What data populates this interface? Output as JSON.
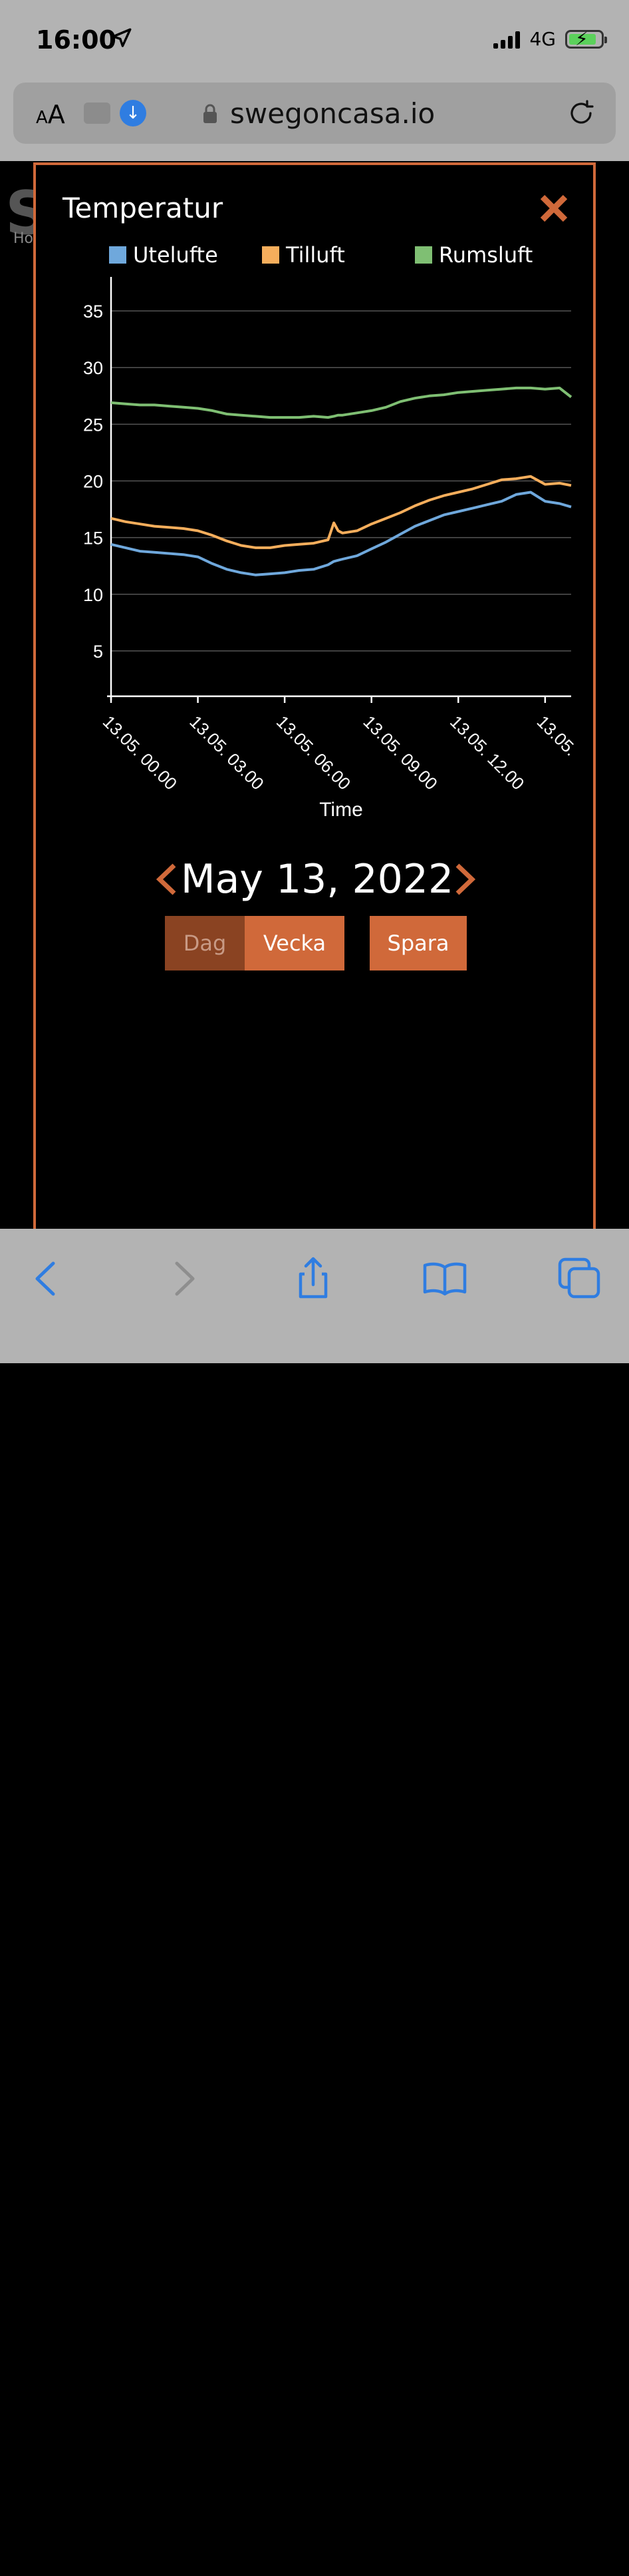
{
  "status": {
    "time": "16:00",
    "network": "4G"
  },
  "browser": {
    "text_size_label": "AA",
    "url": "swegoncasa.io"
  },
  "side": {
    "logo": "S",
    "home_label": "Ho"
  },
  "modal": {
    "title": "Temperatur"
  },
  "chart_data": {
    "type": "line",
    "xlabel": "Time",
    "ylabel": "",
    "ylim": [
      1,
      38
    ],
    "yticks": [
      5,
      10,
      15,
      20,
      25,
      30,
      35
    ],
    "x_tick_labels": [
      "13.05. 00.00",
      "13.05. 03.00",
      "13.05. 06.00",
      "13.05. 09.00",
      "13.05. 12.00",
      "13.05."
    ],
    "x_hours": [
      0,
      0.5,
      1,
      1.5,
      2,
      2.5,
      3,
      3.5,
      4,
      4.5,
      5,
      5.5,
      6,
      6.5,
      7,
      7.5,
      7.7,
      7.85,
      8,
      8.5,
      9,
      9.5,
      10,
      10.5,
      11,
      11.5,
      12,
      12.5,
      13,
      13.5,
      14,
      14.5,
      15,
      15.5,
      15.9
    ],
    "legend_position": "top",
    "grid": true,
    "series": [
      {
        "name": "Utelufte",
        "color": "#6fa8dc",
        "values": [
          14.4,
          14.1,
          13.8,
          13.7,
          13.6,
          13.5,
          13.3,
          12.7,
          12.2,
          11.9,
          11.7,
          11.8,
          11.9,
          12.1,
          12.2,
          12.6,
          12.9,
          13.0,
          13.1,
          13.4,
          14.0,
          14.6,
          15.3,
          16.0,
          16.5,
          17.0,
          17.3,
          17.6,
          17.9,
          18.2,
          18.8,
          19.0,
          18.2,
          18.0,
          17.7
        ]
      },
      {
        "name": "Tilluft",
        "color": "#f6ae5c",
        "values": [
          16.7,
          16.4,
          16.2,
          16.0,
          15.9,
          15.8,
          15.6,
          15.2,
          14.7,
          14.3,
          14.1,
          14.1,
          14.3,
          14.4,
          14.5,
          14.8,
          16.3,
          15.6,
          15.4,
          15.6,
          16.2,
          16.7,
          17.2,
          17.8,
          18.3,
          18.7,
          19.0,
          19.3,
          19.7,
          20.1,
          20.2,
          20.4,
          19.7,
          19.8,
          19.6
        ]
      },
      {
        "name": "Rumsluft",
        "color": "#7fbf73",
        "values": [
          26.9,
          26.8,
          26.7,
          26.7,
          26.6,
          26.5,
          26.4,
          26.2,
          25.9,
          25.8,
          25.7,
          25.6,
          25.6,
          25.6,
          25.7,
          25.6,
          25.7,
          25.8,
          25.8,
          26.0,
          26.2,
          26.5,
          27.0,
          27.3,
          27.5,
          27.6,
          27.8,
          27.9,
          28.0,
          28.1,
          28.2,
          28.2,
          28.1,
          28.2,
          27.4
        ]
      }
    ]
  },
  "controls": {
    "date": "May 13, 2022",
    "dag_label": "Dag",
    "vecka_label": "Vecka",
    "spara_label": "Spara"
  }
}
